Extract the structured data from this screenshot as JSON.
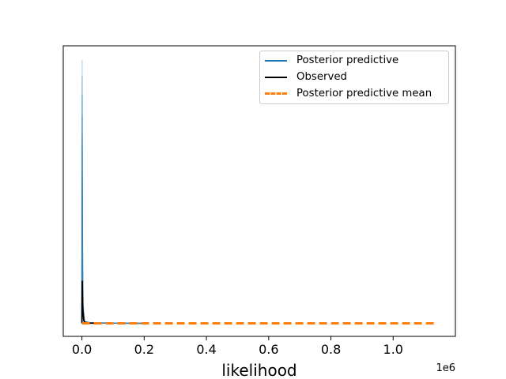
{
  "chart_data": {
    "type": "line",
    "xlabel": "likelihood",
    "ylabel": "",
    "x_offset_label": "1e6",
    "x_ticks": [
      0.0,
      0.2,
      0.4,
      0.6,
      0.8,
      1.0
    ],
    "x_tick_labels": [
      "0.0",
      "0.2",
      "0.4",
      "0.6",
      "0.8",
      "1.0"
    ],
    "xlim": [
      -60000,
      1200000
    ],
    "ylim": [
      0,
      1
    ],
    "y_ticks_shown": false,
    "grid": false,
    "legend_position": "upper right",
    "legend": [
      {
        "label": "Posterior predictive",
        "color": "#1f77b4",
        "style": "solid"
      },
      {
        "label": "Observed",
        "color": "#000000",
        "style": "solid"
      },
      {
        "label": "Posterior predictive mean",
        "color": "#ff7f0e",
        "style": "dashed"
      }
    ],
    "series": [
      {
        "name": "Posterior predictive",
        "color": "#1f77b4",
        "opacity": 0.25,
        "peaks": [
          0.99,
          0.93,
          0.86,
          0.78,
          0.71,
          0.67,
          0.57,
          0.52,
          0.48
        ]
      },
      {
        "name": "Observed",
        "color": "#000000",
        "x": [
          0,
          1000,
          3000,
          6000,
          10000,
          20000,
          50000
        ],
        "y": [
          0.0,
          0.16,
          0.05,
          0.01,
          0.003,
          0.001,
          0.0
        ]
      },
      {
        "name": "Posterior predictive mean",
        "color": "#ff7f0e",
        "x": [
          0,
          1140000
        ],
        "y": [
          0.0,
          0.0
        ]
      }
    ]
  }
}
